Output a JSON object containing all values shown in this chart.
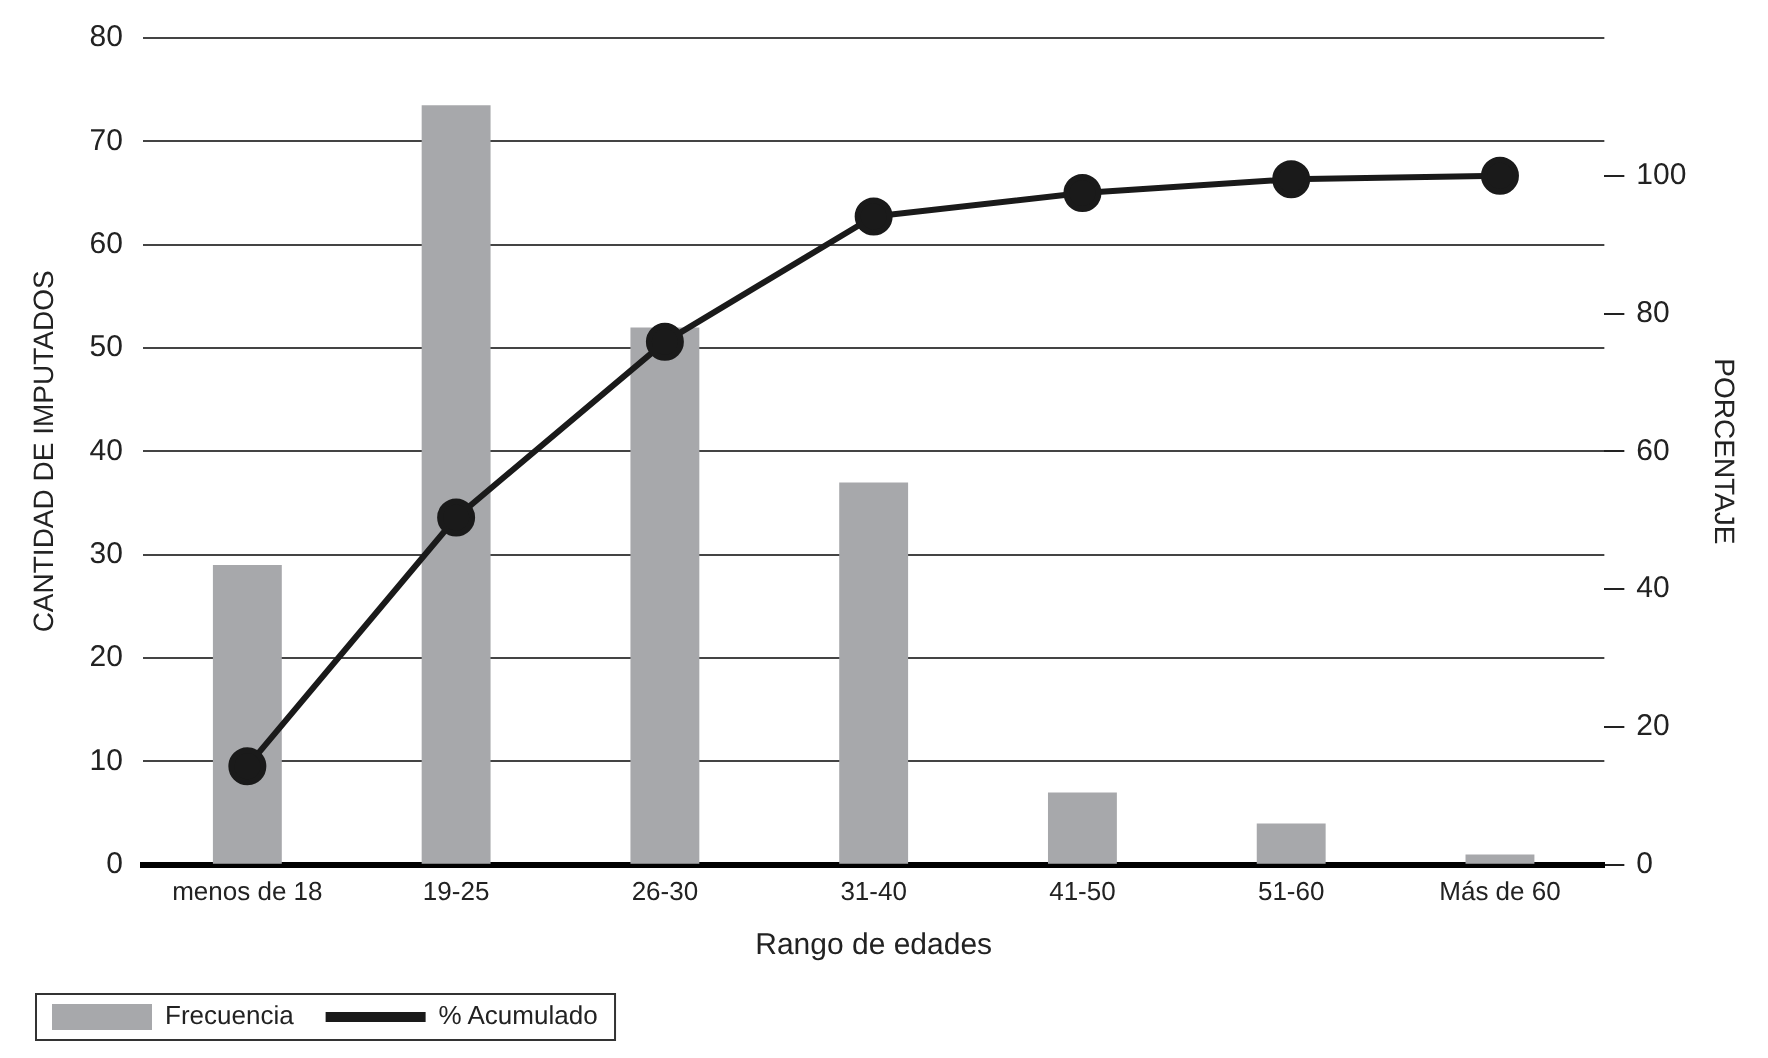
{
  "chart_data": {
    "type": "bar",
    "xlabel": "Rango de edades",
    "ylabel": "CANTIDAD DE IMPUTADOS",
    "y2label": "PORCENTAJE",
    "categories": [
      "menos de 18",
      "19-25",
      "26-30",
      "31-40",
      "41-50",
      "51-60",
      "Más de 60"
    ],
    "series": [
      {
        "name": "Frecuencia",
        "color": "#a7a8ab",
        "values": [
          29,
          73.5,
          52,
          37,
          7,
          4,
          1
        ]
      },
      {
        "name": "% Acumulado",
        "type": "line",
        "axis": "y2",
        "color": "#1a1a1a",
        "marker": "circle",
        "line_style": "solid",
        "values": [
          14.3,
          50.4,
          75.9,
          94.1,
          97.5,
          99.5,
          100
        ]
      }
    ],
    "ylim": [
      0,
      80
    ],
    "yticks": [
      0,
      10,
      20,
      30,
      40,
      50,
      60,
      70,
      80
    ],
    "y2lim": [
      0,
      120
    ],
    "y2ticks": [
      0,
      20,
      40,
      60,
      80,
      100
    ],
    "grid": "y",
    "legend": "bottom left"
  }
}
